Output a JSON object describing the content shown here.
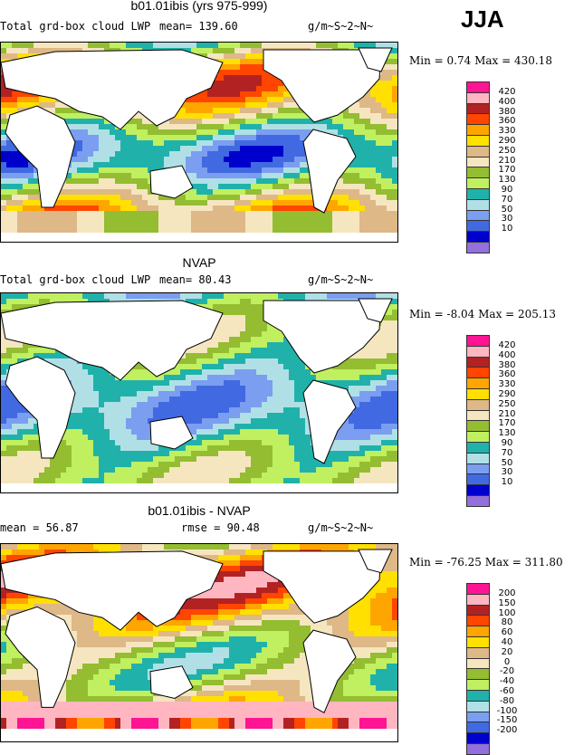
{
  "season": "JJA",
  "palette": [
    "#9370db",
    "#0000cd",
    "#4169e1",
    "#7b9ef0",
    "#b0e0e6",
    "#20b2aa",
    "#c0ef60",
    "#94bd32",
    "#f5e6c0",
    "#deb887",
    "#ffe000",
    "#ffa500",
    "#ff4500",
    "#b22222",
    "#ffb6c1",
    "#ff1493"
  ],
  "panels": [
    {
      "title": "b01.01ibis (yrs 975-999)",
      "left_label": "Total grd-box cloud LWP",
      "stat1": "mean=  139.60",
      "stat2": "",
      "units": "g/m~S~2~N~",
      "minmax": "Min =    0.74  Max = 430.18",
      "levels": [
        "420",
        "400",
        "380",
        "360",
        "330",
        "290",
        "250",
        "210",
        "170",
        "130",
        "90",
        "70",
        "50",
        "30",
        "10"
      ]
    },
    {
      "title": "NVAP",
      "left_label": "Total grd-box cloud LWP",
      "stat1": "mean=   80.43",
      "stat2": "",
      "units": "g/m~S~2~N~",
      "minmax": "Min =  -8.04  Max = 205.13",
      "levels": [
        "420",
        "400",
        "380",
        "360",
        "330",
        "290",
        "250",
        "210",
        "170",
        "130",
        "90",
        "70",
        "50",
        "30",
        "10"
      ]
    },
    {
      "title": "b01.01ibis - NVAP",
      "left_label": "mean =   56.87",
      "stat1": "",
      "stat2": "rmse =  90.48",
      "units": "g/m~S~2~N~",
      "minmax": "Min = -76.25  Max = 311.80",
      "levels": [
        "200",
        "150",
        "100",
        "80",
        "60",
        "40",
        "20",
        "0",
        "-20",
        "-40",
        "-60",
        "-80",
        "-100",
        "-150",
        "-200"
      ]
    }
  ]
}
